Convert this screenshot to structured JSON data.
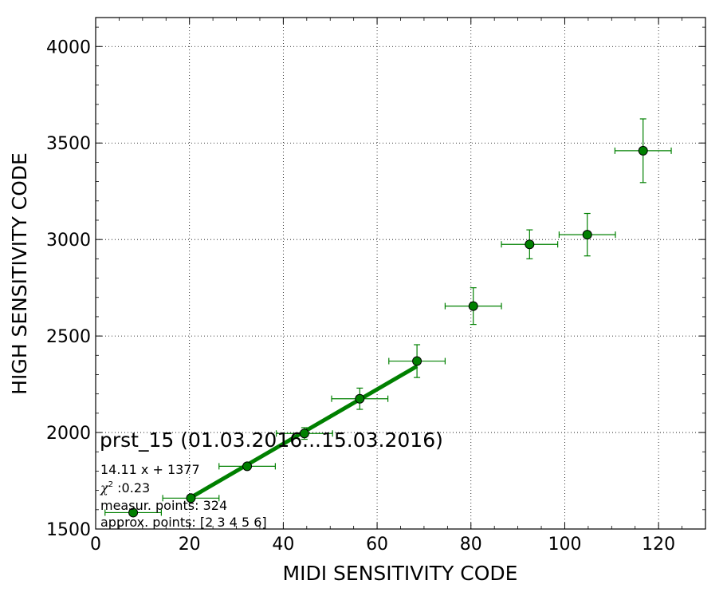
{
  "chart_data": {
    "type": "scatter",
    "title": "",
    "xlabel": "MIDI SENSITIVITY CODE",
    "ylabel": "HIGH SENSITIVITY CODE",
    "xlim": [
      0,
      130
    ],
    "ylim": [
      1500,
      4150
    ],
    "x_ticks": [
      0,
      20,
      40,
      60,
      80,
      100,
      120
    ],
    "y_ticks": [
      1500,
      2000,
      2500,
      3000,
      3500,
      4000
    ],
    "grid": true,
    "colors": {
      "points": "#008000",
      "point_edge": "#000000",
      "fit_line": "#008000",
      "errorbar": "#008000"
    },
    "series": [
      {
        "points": [
          {
            "x": 8,
            "y": 1585,
            "xerr": 6,
            "yerr": 0
          },
          {
            "x": 20.3,
            "y": 1660,
            "xerr": 6,
            "yerr": 0
          },
          {
            "x": 32.3,
            "y": 1825,
            "xerr": 6,
            "yerr": 0
          },
          {
            "x": 44.5,
            "y": 1995,
            "xerr": 6,
            "yerr": 30
          },
          {
            "x": 56.3,
            "y": 2175,
            "xerr": 6,
            "yerr": 55
          },
          {
            "x": 68.5,
            "y": 2370,
            "xerr": 6,
            "yerr": 85
          },
          {
            "x": 80.5,
            "y": 2655,
            "xerr": 6,
            "yerr": 95
          },
          {
            "x": 92.5,
            "y": 2975,
            "xerr": 6,
            "yerr": 75
          },
          {
            "x": 104.8,
            "y": 3025,
            "xerr": 6,
            "yerr": 110
          },
          {
            "x": 116.7,
            "y": 3460,
            "xerr": 6,
            "yerr": 165
          }
        ]
      }
    ],
    "fit": {
      "slope": 14.11,
      "intercept": 1377,
      "x_range": [
        20.3,
        68.5
      ]
    },
    "annotations": {
      "title": "prst_15 (01.03.2016...15.03.2016)",
      "equation": "14.11 x + 1377",
      "chi_symbol": "χ",
      "chi_sup": "2",
      "chi_value": " :0.23",
      "measur_points": "measur. points: 324",
      "approx_points": "approx. points: [2 3 4 5 6]"
    }
  }
}
